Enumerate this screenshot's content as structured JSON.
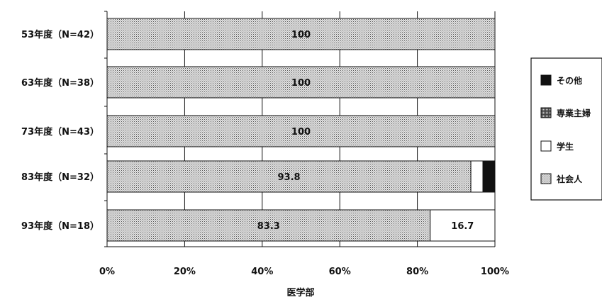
{
  "chart_data": {
    "type": "bar",
    "orientation": "horizontal",
    "stacked": true,
    "percent": true,
    "categories": [
      "53年度（N=42）",
      "63年度（N=38）",
      "73年度（N=43）",
      "83年度（N=32）",
      "93年度（N=18）"
    ],
    "series": [
      {
        "name": "社会人",
        "values": [
          100,
          100,
          100,
          93.8,
          83.3
        ],
        "labels": [
          "100",
          "100",
          "100",
          "93.8",
          "83.3"
        ],
        "fill": "dotted-gray"
      },
      {
        "name": "学生",
        "values": [
          0,
          0,
          0,
          3.1,
          16.7
        ],
        "labels": [
          "",
          "",
          "",
          "",
          "16.7"
        ],
        "fill": "white"
      },
      {
        "name": "専業主婦",
        "values": [
          0,
          0,
          0,
          0,
          0
        ],
        "labels": [
          "",
          "",
          "",
          "",
          ""
        ],
        "fill": "dense-dark"
      },
      {
        "name": "その他",
        "values": [
          0,
          0,
          0,
          3.1,
          0
        ],
        "labels": [
          "",
          "",
          "",
          "",
          ""
        ],
        "fill": "black"
      }
    ],
    "legend_order": [
      "その他",
      "専業主婦",
      "学生",
      "社会人"
    ],
    "xticks": [
      "0%",
      "20%",
      "40%",
      "60%",
      "80%",
      "100%"
    ],
    "xlim": [
      0,
      100
    ],
    "xlabel": "医学部",
    "ylabel": "",
    "title": "",
    "grid": "vertical",
    "legend_position": "right"
  },
  "colors": {
    "black": "#111111",
    "dotted_bg": "#e2e2e2",
    "dotted_dot": "#555555",
    "dense_bg": "#444444",
    "dense_dot": "#cfcfcf",
    "white": "#ffffff",
    "axis": "#111111"
  }
}
